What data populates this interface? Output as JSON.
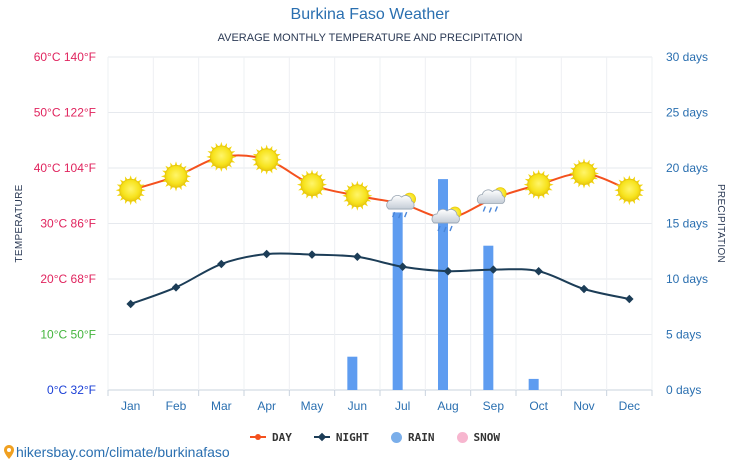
{
  "chart_data": {
    "type": "line+bar",
    "title": "Burkina Faso Weather",
    "subtitle": "AVERAGE MONTHLY TEMPERATURE AND PRECIPITATION",
    "ylabel_left": "TEMPERATURE",
    "ylabel_right": "PRECIPITATION",
    "categories": [
      "Jan",
      "Feb",
      "Mar",
      "Apr",
      "May",
      "Jun",
      "Jul",
      "Aug",
      "Sep",
      "Oct",
      "Nov",
      "Dec"
    ],
    "y_left_ticks": [
      {
        "c": 0,
        "label": "0°C 32°F",
        "color": "#1a3fd6"
      },
      {
        "c": 10,
        "label": "10°C 50°F",
        "color": "#44b53d"
      },
      {
        "c": 20,
        "label": "20°C 68°F",
        "color": "#e0245e"
      },
      {
        "c": 30,
        "label": "30°C 86°F",
        "color": "#e0245e"
      },
      {
        "c": 40,
        "label": "40°C 104°F",
        "color": "#e0245e"
      },
      {
        "c": 50,
        "label": "50°C 122°F",
        "color": "#e0245e"
      },
      {
        "c": 60,
        "label": "60°C 140°F",
        "color": "#e0245e"
      }
    ],
    "y_right_ticks": [
      "0 days",
      "5 days",
      "10 days",
      "15 days",
      "20 days",
      "25 days",
      "30 days"
    ],
    "ylim_left": [
      0,
      60
    ],
    "ylim_right": [
      0,
      30
    ],
    "series": [
      {
        "name": "DAY",
        "unit": "°C",
        "color": "#f4511e",
        "values": [
          36,
          38.5,
          42,
          41.5,
          37,
          35,
          33.5,
          31,
          34.5,
          37,
          39,
          36
        ],
        "icons": [
          "sun",
          "sun",
          "sun",
          "sun",
          "sun",
          "sun",
          "cloud-rain-sun",
          "cloud-rain-sun",
          "cloud-rain-sun",
          "sun",
          "sun",
          "sun"
        ]
      },
      {
        "name": "NIGHT",
        "unit": "°C",
        "color": "#1c3d57",
        "values": [
          15.5,
          18.5,
          22.7,
          24.5,
          24.4,
          24,
          22.2,
          21.4,
          21.7,
          21.4,
          18.2,
          16.4
        ]
      },
      {
        "name": "RAIN",
        "unit": "days",
        "color": "#6fa8f0",
        "values": [
          0,
          0,
          0,
          0,
          0,
          3,
          16,
          19,
          13,
          1,
          0,
          0
        ]
      },
      {
        "name": "SNOW",
        "unit": "days",
        "color": "#f7b6cf",
        "values": [
          0,
          0,
          0,
          0,
          0,
          0,
          0,
          0,
          0,
          0,
          0,
          0
        ]
      }
    ],
    "legend": [
      "DAY",
      "NIGHT",
      "RAIN",
      "SNOW"
    ],
    "legend_position": "bottom-center",
    "grid": true
  },
  "source_text": "hikersbay.com/climate/burkinafaso"
}
